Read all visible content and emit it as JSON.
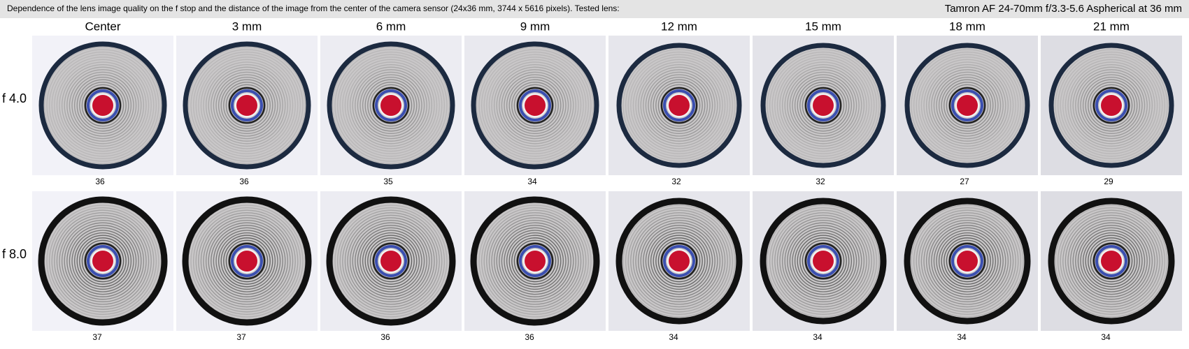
{
  "header": {
    "description": "Dependence of the lens image quality on the f stop and the distance of the image from the center of the camera sensor (24x36 mm, 3744 x 5616 pixels).  Tested lens:",
    "lens": "Tamron AF 24-70mm f/3.3-5.6 Aspherical at 36 mm"
  },
  "table": {
    "columns": [
      "Center",
      "3 mm",
      "6 mm",
      "9 mm",
      "12 mm",
      "15 mm",
      "18 mm",
      "21 mm"
    ],
    "rows": [
      {
        "label": "f 4.0",
        "scores": [
          36,
          36,
          35,
          34,
          32,
          32,
          27,
          29
        ]
      },
      {
        "label": "f 8.0",
        "scores": [
          37,
          37,
          36,
          36,
          34,
          34,
          34,
          34
        ]
      }
    ]
  }
}
